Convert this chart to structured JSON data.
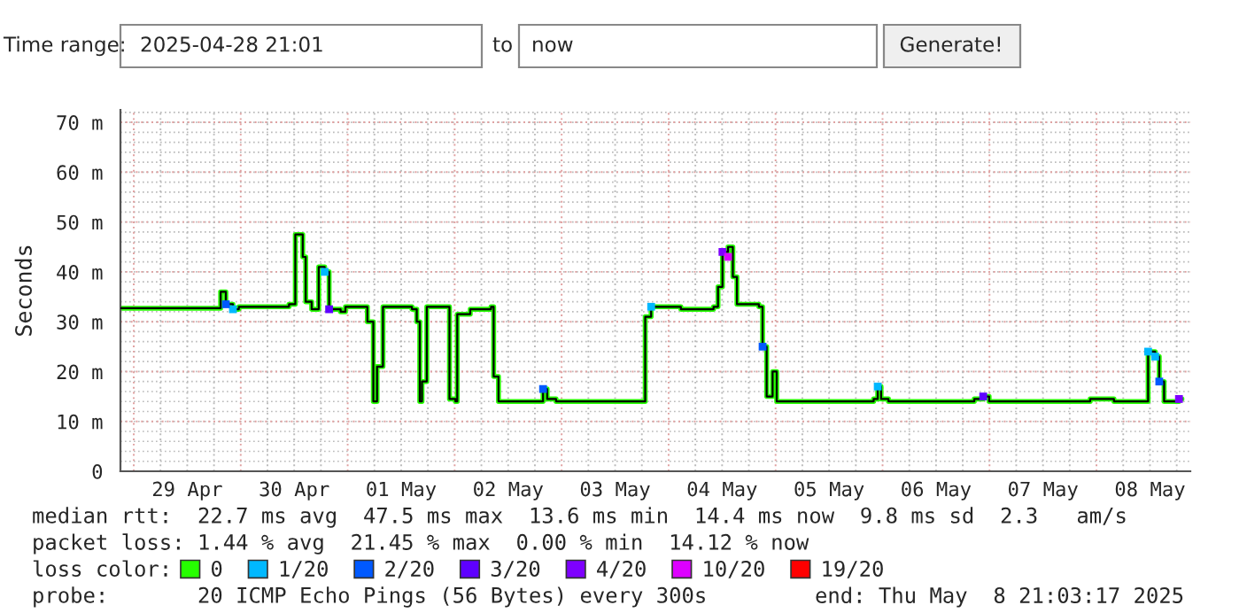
{
  "chart_data": {
    "type": "step",
    "ylabel": "Seconds",
    "legend_title": "loss color:",
    "annotations": [
      "Time range:",
      "2025-04-28 21:01",
      "to",
      "now",
      "Generate!",
      "median rtt:  22.7 ms avg  47.5 ms max  13.6 ms min  14.4 ms now  9.8 ms sd  2.3   am/s",
      "packet loss: 1.44 % avg  21.45 % max  0.00 % min  14.12 % now",
      "probe:       20 ICMP Echo Pings (56 Bytes) every 300s",
      "end: Thu May  8 21:03:17 2025"
    ],
    "xlim": [
      "2025-04-28T21:01",
      "2025-05-08T21:03"
    ],
    "xticks": [
      {
        "value": "2025-04-29T12:00",
        "label": "29 Apr"
      },
      {
        "value": "2025-04-30T12:00",
        "label": "30 Apr"
      },
      {
        "value": "2025-05-01T12:00",
        "label": "01 May"
      },
      {
        "value": "2025-05-02T12:00",
        "label": "02 May"
      },
      {
        "value": "2025-05-03T12:00",
        "label": "03 May"
      },
      {
        "value": "2025-05-04T12:00",
        "label": "04 May"
      },
      {
        "value": "2025-05-05T12:00",
        "label": "05 May"
      },
      {
        "value": "2025-05-06T12:00",
        "label": "06 May"
      },
      {
        "value": "2025-05-07T12:00",
        "label": "07 May"
      },
      {
        "value": "2025-05-08T12:00",
        "label": "08 May"
      }
    ],
    "ylim": [
      0,
      72.5
    ],
    "yticks": [
      {
        "value": 0,
        "label": "0"
      },
      {
        "value": 10,
        "label": "10 m"
      },
      {
        "value": 20,
        "label": "20 m"
      },
      {
        "value": 30,
        "label": "30 m"
      },
      {
        "value": 40,
        "label": "40 m"
      },
      {
        "value": 50,
        "label": "50 m"
      },
      {
        "value": 60,
        "label": "60 m"
      },
      {
        "value": 70,
        "label": "70 m"
      }
    ],
    "grid": true,
    "legend": "bottom",
    "series": [
      {
        "name": "0",
        "color": "#26ff00",
        "x": [
          "2025-04-28T21:01",
          "2025-04-29T19:30",
          "2025-04-29T20:40",
          "2025-04-29T22:15",
          "2025-04-29T23:35",
          "2025-04-30T10:50",
          "2025-04-30T12:15",
          "2025-04-30T13:55",
          "2025-04-30T14:35",
          "2025-04-30T15:55",
          "2025-04-30T17:30",
          "2025-04-30T18:50",
          "2025-04-30T19:50",
          "2025-04-30T22:25",
          "2025-04-30T23:30",
          "2025-05-01T04:25",
          "2025-05-01T05:45",
          "2025-05-01T06:35",
          "2025-05-01T07:55",
          "2025-05-01T14:25",
          "2025-05-01T15:30",
          "2025-05-01T16:10",
          "2025-05-01T16:40",
          "2025-05-01T17:45",
          "2025-05-01T22:50",
          "2025-05-02T00:10",
          "2025-05-02T00:35",
          "2025-05-02T03:30",
          "2025-05-02T08:10",
          "2025-05-02T08:45",
          "2025-05-02T09:50",
          "2025-05-02T19:25",
          "2025-05-02T19:50",
          "2025-05-02T20:45",
          "2025-05-02T22:45",
          "2025-05-03T18:45",
          "2025-05-03T20:05",
          "2025-05-04T02:45",
          "2025-05-04T10:05",
          "2025-05-04T11:05",
          "2025-05-04T12:05",
          "2025-05-04T13:20",
          "2025-05-04T14:25",
          "2025-05-04T15:20",
          "2025-05-04T20:15",
          "2025-05-04T21:05",
          "2025-05-04T22:00",
          "2025-05-04T23:20",
          "2025-05-05T00:15",
          "2025-05-05T22:00",
          "2025-05-05T22:55",
          "2025-05-05T23:40",
          "2025-05-06T01:20",
          "2025-05-06T20:35",
          "2025-05-06T22:35",
          "2025-05-06T23:55",
          "2025-05-07T22:35",
          "2025-05-08T03:55",
          "2025-05-08T11:35",
          "2025-05-08T13:10",
          "2025-05-08T14:05",
          "2025-05-08T15:10",
          "2025-05-08T18:30",
          "2025-05-08T19:10"
        ],
        "values": [
          32.7,
          36,
          33.5,
          32.5,
          33,
          33.5,
          47.5,
          43,
          34,
          32.5,
          41,
          40,
          32.5,
          32,
          33,
          30,
          14,
          21,
          33,
          32.5,
          30,
          14,
          18,
          33,
          14.5,
          14,
          31.5,
          32.5,
          33,
          19,
          14,
          14,
          16.5,
          14.5,
          14,
          31,
          33,
          32.5,
          33,
          37,
          44,
          45,
          39,
          33.5,
          33,
          25,
          15,
          20,
          14,
          14.5,
          17,
          14.5,
          14,
          14.5,
          15,
          14,
          14.5,
          14,
          24,
          23,
          18,
          14,
          14.5,
          14.5
        ]
      },
      {
        "name": "1/20",
        "type": "scatter",
        "color": "#00b8ff",
        "x": [
          "2025-04-29T22:15",
          "2025-04-30T18:50",
          "2025-05-03T20:05",
          "2025-05-05T22:55",
          "2025-05-08T11:35",
          "2025-05-08T13:10"
        ],
        "values": [
          32.5,
          40,
          33,
          17,
          24,
          23
        ]
      },
      {
        "name": "2/20",
        "type": "scatter",
        "color": "#0059ff",
        "x": [
          "2025-04-29T20:40",
          "2025-05-02T19:50",
          "2025-05-04T21:05",
          "2025-05-08T14:05"
        ],
        "values": [
          33.5,
          16.5,
          25,
          18
        ]
      },
      {
        "name": "3/20",
        "type": "scatter",
        "color": "#5e00ff",
        "x": [
          "2025-04-30T19:50",
          "2025-05-06T22:35"
        ],
        "values": [
          32.5,
          15
        ]
      },
      {
        "name": "4/20",
        "type": "scatter",
        "color": "#7e00ff",
        "x": [
          "2025-05-04T12:05",
          "2025-05-08T18:30"
        ],
        "values": [
          44,
          14.5
        ]
      },
      {
        "name": "10/20",
        "type": "scatter",
        "color": "#dd00ff",
        "x": [
          "2025-05-04T13:20"
        ],
        "values": [
          43
        ]
      },
      {
        "name": "19/20",
        "type": "scatter",
        "color": "#ff0000"
      }
    ]
  }
}
